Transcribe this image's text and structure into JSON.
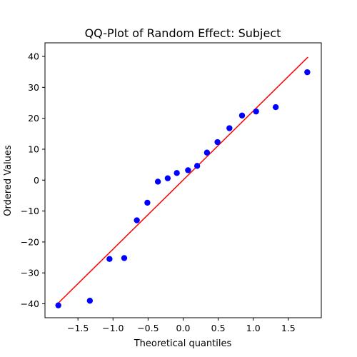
{
  "chart_data": {
    "type": "scatter",
    "title": "QQ-Plot of Random Effect: Subject",
    "xlabel": "Theoretical quantiles",
    "ylabel": "Ordered Values",
    "xlim": [
      -1.97,
      1.97
    ],
    "ylim": [
      -44.5,
      44.4
    ],
    "x_ticks": [
      -1.5,
      -1.0,
      -0.5,
      0.0,
      0.5,
      1.0,
      1.5
    ],
    "x_tick_labels": [
      "−1.5",
      "−1.0",
      "−0.5",
      "0.0",
      "0.5",
      "1.0",
      "1.5"
    ],
    "y_ticks": [
      -40,
      -30,
      -20,
      -10,
      0,
      10,
      20,
      30,
      40
    ],
    "y_tick_labels": [
      "−40",
      "−30",
      "−20",
      "−10",
      "0",
      "10",
      "20",
      "30",
      "40"
    ],
    "grid": false,
    "series": [
      {
        "kind": "points",
        "color": "#0000ff",
        "x": [
          -1.78,
          -1.33,
          -1.05,
          -0.84,
          -0.66,
          -0.51,
          -0.36,
          -0.22,
          -0.09,
          0.07,
          0.2,
          0.34,
          0.49,
          0.66,
          0.84,
          1.04,
          1.32,
          1.77
        ],
        "y": [
          -40.5,
          -39.0,
          -25.5,
          -25.2,
          -13.0,
          -7.3,
          -0.5,
          0.6,
          2.3,
          3.2,
          4.6,
          8.9,
          12.3,
          16.8,
          20.9,
          22.2,
          23.6,
          34.9
        ]
      },
      {
        "kind": "fit-line",
        "color": "#ff0000",
        "x": [
          -1.8,
          1.78
        ],
        "y": [
          -40.2,
          39.8
        ]
      }
    ]
  }
}
